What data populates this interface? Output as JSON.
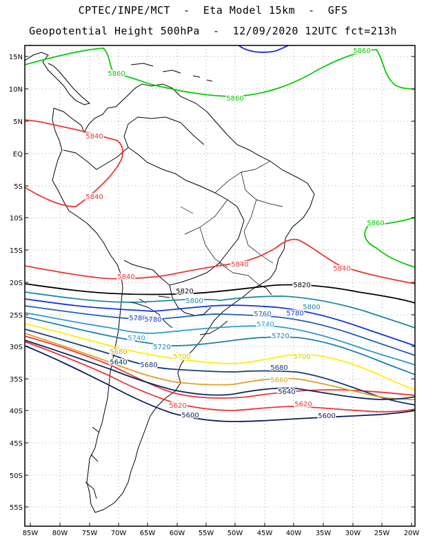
{
  "header": {
    "line1": "CPTEC/INPE/MCT  -  Eta Model 15km  -  GFS",
    "line2": "Geopotential Height 500hPa  -  12/09/2020 12UTC fct=213h"
  },
  "map": {
    "lat_ticks": [
      "15N",
      "10N",
      "5N",
      "EQ",
      "5S",
      "10S",
      "15S",
      "20S",
      "25S",
      "30S",
      "35S",
      "40S",
      "45S",
      "50S",
      "55S"
    ],
    "lon_ticks": [
      "85W",
      "80W",
      "75W",
      "70W",
      "65W",
      "60W",
      "55W",
      "50W",
      "45W",
      "40W",
      "35W",
      "30W",
      "25W",
      "20W"
    ],
    "lon_range": [
      -86,
      -20
    ],
    "lat_range": [
      16,
      -58
    ]
  },
  "contours": [
    {
      "name": "5860-north",
      "value": "5860",
      "color": "#00cc00"
    },
    {
      "name": "5860-east",
      "value": "5860",
      "color": "#00cc00"
    },
    {
      "name": "5840-north",
      "value": "5840",
      "color": "#ee3333"
    },
    {
      "name": "5840-mid",
      "value": "5840",
      "color": "#ee3333"
    },
    {
      "name": "5840-south",
      "value": "5840",
      "color": "#ee3333"
    },
    {
      "name": "5820",
      "value": "5820",
      "color": "#000000"
    },
    {
      "name": "5800",
      "value": "5800",
      "color": "#1a8aa0"
    },
    {
      "name": "5780",
      "value": "5780",
      "color": "#1433e0"
    },
    {
      "name": "5760",
      "value": "5760",
      "color": "#1e5fb4"
    },
    {
      "name": "5740",
      "value": "5740",
      "color": "#2c9ac8"
    },
    {
      "name": "5720",
      "value": "5720",
      "color": "#1a7fb0"
    },
    {
      "name": "5700",
      "value": "5700",
      "color": "#ffee00"
    },
    {
      "name": "5680",
      "value": "5680",
      "color": "#123a78"
    },
    {
      "name": "5660",
      "value": "5660",
      "color": "#e0a020"
    },
    {
      "name": "5640",
      "value": "5640",
      "color": "#0a2860"
    },
    {
      "name": "5620",
      "value": "5620",
      "color": "#ee3333"
    },
    {
      "name": "5600",
      "value": "5600",
      "color": "#0a1e5a"
    },
    {
      "name": "5880",
      "value": "",
      "color": "#2222dd"
    }
  ],
  "contour_labels": [
    {
      "text": "5860",
      "color": "#00cc00"
    },
    {
      "text": "5860",
      "color": "#00cc00"
    },
    {
      "text": "5860",
      "color": "#00cc00"
    },
    {
      "text": "5860",
      "color": "#00cc00"
    },
    {
      "text": "5840",
      "color": "#ee3333"
    },
    {
      "text": "5840",
      "color": "#ee3333"
    },
    {
      "text": "5840",
      "color": "#ee3333"
    },
    {
      "text": "5840",
      "color": "#ee3333"
    },
    {
      "text": "5840",
      "color": "#ee3333"
    },
    {
      "text": "5820",
      "color": "#000000"
    },
    {
      "text": "5820",
      "color": "#000000"
    },
    {
      "text": "5800",
      "color": "#1a8aa0"
    },
    {
      "text": "5800",
      "color": "#1a8aa0"
    },
    {
      "text": "5780",
      "color": "#1433e0"
    },
    {
      "text": "5780",
      "color": "#1433e0"
    },
    {
      "text": "5780",
      "color": "#1433e0"
    },
    {
      "text": "5760",
      "color": "#1e5fb4"
    },
    {
      "text": "5740",
      "color": "#2c9ac8"
    },
    {
      "text": "5740",
      "color": "#2c9ac8"
    },
    {
      "text": "5720",
      "color": "#1a7fb0"
    },
    {
      "text": "5720",
      "color": "#1a7fb0"
    },
    {
      "text": "5700",
      "color": "#d8c800"
    },
    {
      "text": "5700",
      "color": "#d8c800"
    },
    {
      "text": "5680",
      "color": "#e0a020"
    },
    {
      "text": "5680",
      "color": "#123a78"
    },
    {
      "text": "5680",
      "color": "#123a78"
    },
    {
      "text": "5660",
      "color": "#e0a020"
    },
    {
      "text": "5640",
      "color": "#0a2860"
    },
    {
      "text": "5640",
      "color": "#0a2860"
    },
    {
      "text": "5620",
      "color": "#ee3333"
    },
    {
      "text": "5620",
      "color": "#ee3333"
    },
    {
      "text": "5600",
      "color": "#0a1e5a"
    },
    {
      "text": "5600",
      "color": "#0a1e5a"
    }
  ]
}
